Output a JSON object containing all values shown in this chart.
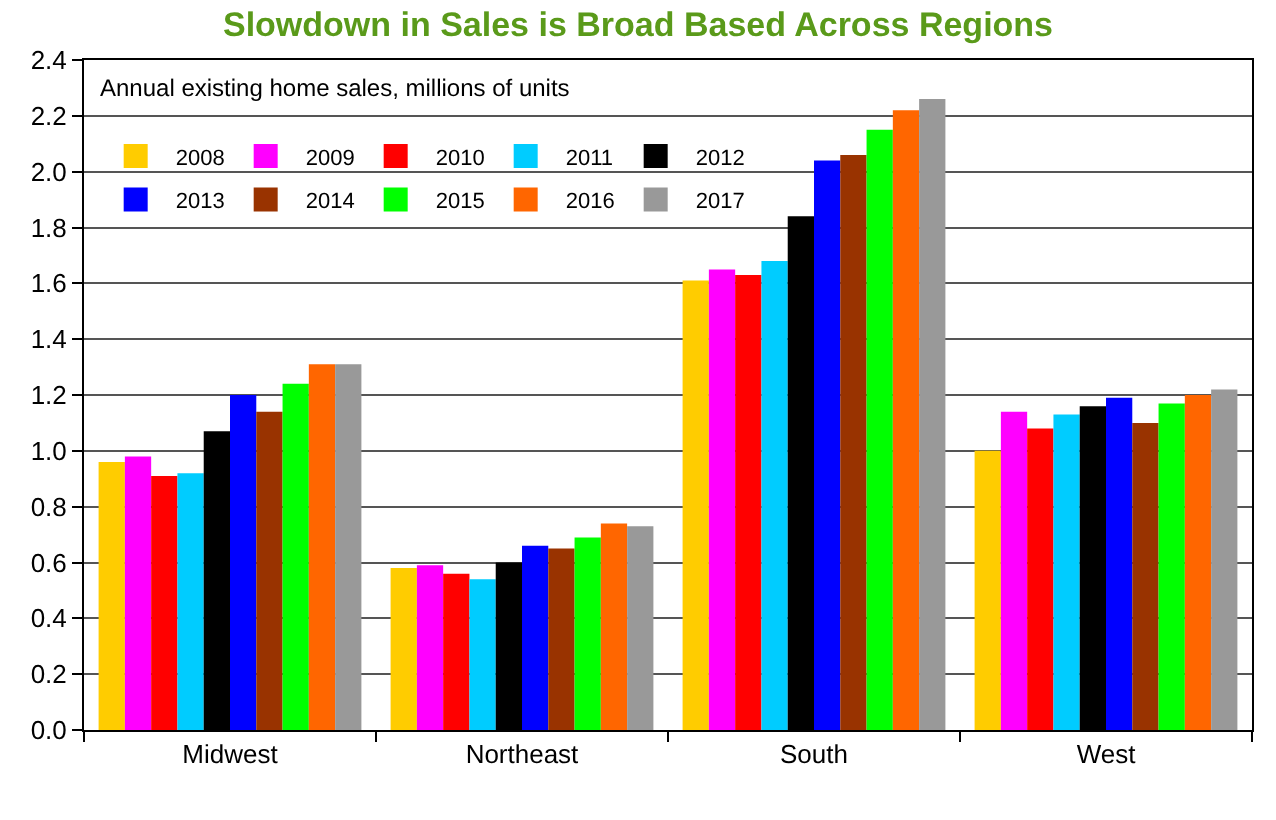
{
  "chart_data": {
    "type": "bar",
    "title": "Slowdown in Sales is Broad Based Across Regions",
    "subtitle": "Annual existing home sales, millions of units",
    "categories": [
      "Midwest",
      "Northeast",
      "South",
      "West"
    ],
    "series": [
      {
        "name": "2008",
        "color": "#ffcc00",
        "values": [
          0.96,
          0.58,
          1.61,
          1.0
        ]
      },
      {
        "name": "2009",
        "color": "#ff00ff",
        "values": [
          0.98,
          0.59,
          1.65,
          1.14
        ]
      },
      {
        "name": "2010",
        "color": "#ff0000",
        "values": [
          0.91,
          0.56,
          1.63,
          1.08
        ]
      },
      {
        "name": "2011",
        "color": "#00ccff",
        "values": [
          0.92,
          0.54,
          1.68,
          1.13
        ]
      },
      {
        "name": "2012",
        "color": "#000000",
        "values": [
          1.07,
          0.6,
          1.84,
          1.16
        ]
      },
      {
        "name": "2013",
        "color": "#0000ff",
        "values": [
          1.2,
          0.66,
          2.04,
          1.19
        ]
      },
      {
        "name": "2014",
        "color": "#993300",
        "values": [
          1.14,
          0.65,
          2.06,
          1.1
        ]
      },
      {
        "name": "2015",
        "color": "#00ff00",
        "values": [
          1.24,
          0.69,
          2.15,
          1.17
        ]
      },
      {
        "name": "2016",
        "color": "#ff6600",
        "values": [
          1.31,
          0.74,
          2.22,
          1.2
        ]
      },
      {
        "name": "2017",
        "color": "#999999",
        "values": [
          1.31,
          0.73,
          2.26,
          1.22
        ]
      }
    ],
    "ylim": [
      0,
      2.4
    ],
    "yticks": [
      {
        "value": 0,
        "label": "0.0"
      },
      0.2,
      0.4,
      0.6,
      0.8,
      {
        "value": 1,
        "label": "1.0"
      },
      1.2,
      1.4,
      1.6,
      1.8,
      {
        "value": 2,
        "label": "2.0"
      },
      2.2,
      2.4
    ],
    "grid": "y",
    "legend": "top left"
  }
}
